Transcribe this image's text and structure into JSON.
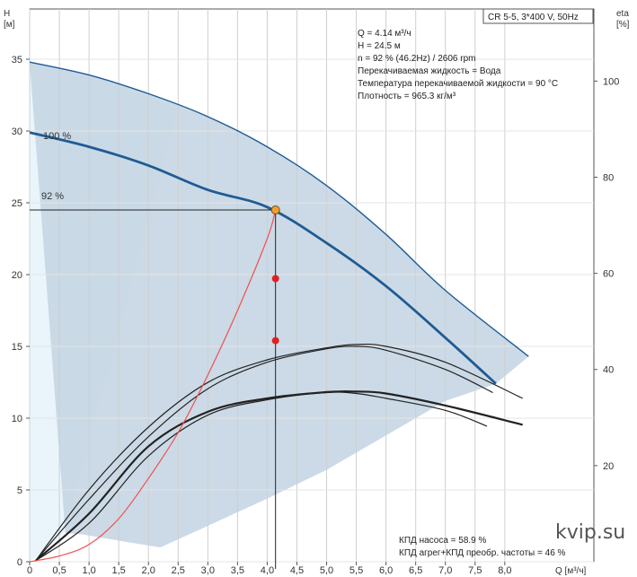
{
  "title": "CR 5-5, 3*400 V, 50Hz",
  "info_lines": [
    "Q = 4.14 м³/ч",
    "H = 24.5 м",
    "n = 92 % (46.2Hz) / 2606 rpm",
    "Перекачиваемая жидкость = Вода",
    "Температура перекачиваемой жидкости = 90 °C",
    "Плотность = 965.3 кг/м³"
  ],
  "bottom_info": [
    "КПД насоса = 58.9 %",
    "КПД агрег+КПД преобр. частоты = 46 %"
  ],
  "watermark": "kvip.su",
  "colors": {
    "head_curve": "#1f5b94",
    "envelope_fill": "#c5d6e3",
    "light_fill": "#e9f5fb",
    "system_curve": "#f05050",
    "op_point": "#f0a030",
    "eff_point": "#e02020",
    "eff_curves": "#222222"
  },
  "chart_data": {
    "type": "line",
    "title": "CR 5-5, 3*400 V, 50Hz",
    "xlabel": "Q [м³/ч]",
    "ylabel_left": [
      "H",
      "[м]"
    ],
    "ylabel_right": [
      "eta",
      "[%]"
    ],
    "xlim": [
      0,
      9.5
    ],
    "ylim_left": [
      0,
      38.5
    ],
    "ylim_right": [
      0,
      115
    ],
    "x_ticks": [
      0,
      0.5,
      1.0,
      1.5,
      2.0,
      2.5,
      3.0,
      3.5,
      4.0,
      4.5,
      5.0,
      5.5,
      6.0,
      6.5,
      7.0,
      7.5,
      8.0
    ],
    "x_tick_labels": [
      "0",
      "0,5",
      "1,0",
      "1,5",
      "2,0",
      "2,5",
      "3,0",
      "3,5",
      "4,0",
      "4,5",
      "5,0",
      "5,5",
      "6,0",
      "6,5",
      "7,0",
      "7,5",
      "8,0"
    ],
    "y_left_ticks": [
      0,
      5,
      10,
      15,
      20,
      25,
      30,
      35
    ],
    "y_right_ticks": [
      20,
      40,
      60,
      80,
      100
    ],
    "grid": true,
    "head_series": [
      {
        "name": "100 %",
        "x": [
          0,
          1,
          2,
          3,
          4,
          5,
          6,
          7,
          8.4
        ],
        "y": [
          34.8,
          33.9,
          32.6,
          31.0,
          28.9,
          26.2,
          22.8,
          18.9,
          14.3
        ]
      },
      {
        "name": "92 %",
        "x": [
          0,
          1,
          2,
          3,
          4,
          5,
          6,
          7,
          7.85
        ],
        "y": [
          29.9,
          28.9,
          27.6,
          25.9,
          24.7,
          22.2,
          19.2,
          15.6,
          12.4
        ]
      }
    ],
    "envelope": {
      "x": [
        0,
        1,
        2,
        3,
        4,
        5,
        6,
        7,
        8.4,
        7.85,
        7,
        6,
        5,
        4,
        3,
        2.2,
        1.6,
        0.9,
        0.6
      ],
      "y": [
        34.8,
        33.9,
        32.6,
        31.0,
        28.9,
        26.2,
        22.8,
        18.9,
        14.3,
        12.4,
        11.2,
        8.8,
        6.4,
        4.4,
        2.5,
        1.0,
        1.4,
        1.9,
        2.0
      ]
    },
    "efficiency_series": [
      {
        "x": [
          0.1,
          1,
          2,
          3,
          4,
          5,
          5.5,
          6,
          7,
          8.3
        ],
        "y": [
          0.2,
          15,
          28,
          37.3,
          42,
          44.5,
          45.2,
          44.8,
          41.5,
          34
        ]
      },
      {
        "x": [
          0.1,
          1,
          2,
          3,
          4,
          5,
          5.5,
          6,
          7,
          7.8
        ],
        "y": [
          0.2,
          13,
          26,
          36,
          41.5,
          44.3,
          44.8,
          44,
          40,
          35.2
        ]
      },
      {
        "x": [
          0.1,
          1,
          2,
          3,
          4,
          5,
          5.5,
          6,
          7,
          8.3
        ],
        "y": [
          0.2,
          10,
          24,
          31.2,
          34,
          35.3,
          35.4,
          35,
          32.5,
          28.5
        ]
      },
      {
        "x": [
          0.1,
          1,
          2,
          3,
          4,
          5,
          5.5,
          6,
          7,
          7.7
        ],
        "y": [
          0.2,
          8,
          22,
          30.5,
          33.7,
          35.2,
          35,
          34,
          31.5,
          28.2
        ]
      }
    ],
    "system_curve": {
      "x": [
        0,
        0.5,
        1,
        1.5,
        2,
        2.5,
        3,
        3.5,
        4,
        4.14
      ],
      "y": [
        0,
        0.4,
        1.2,
        3.0,
        5.8,
        9.0,
        13.0,
        17.5,
        22.5,
        24.5
      ]
    },
    "operating_point": {
      "q": 4.14,
      "h": 24.5
    },
    "efficiency_points": [
      {
        "q": 4.14,
        "eta": 58.9
      },
      {
        "q": 4.14,
        "eta": 46
      }
    ],
    "curve_labels": [
      "100 %",
      "92 %"
    ]
  }
}
